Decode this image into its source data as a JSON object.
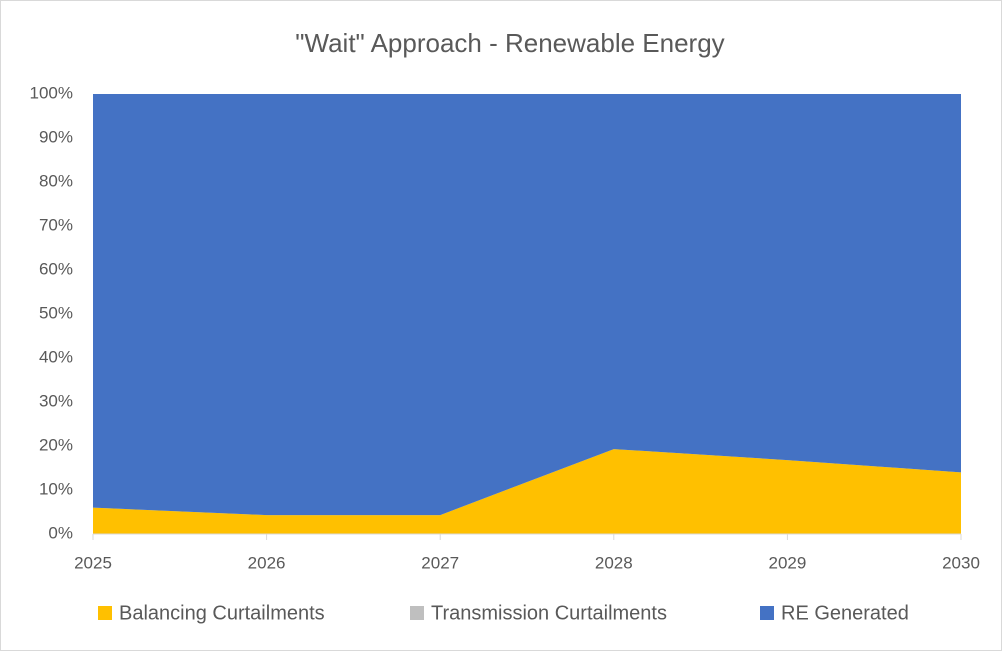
{
  "chart_data": {
    "type": "stacked_area",
    "title": "\"Wait\" Approach - Renewable Energy",
    "x": [
      2025,
      2026,
      2027,
      2028,
      2029,
      2030
    ],
    "series": [
      {
        "name": "Balancing Curtailments",
        "color": "#ffc000",
        "values": [
          6,
          4.3,
          4.3,
          19.3,
          16.8,
          14
        ]
      },
      {
        "name": "Transmission Curtailments",
        "color": "#bfbfbf",
        "values": [
          0,
          0,
          0,
          0,
          0,
          0
        ]
      },
      {
        "name": "RE Generated",
        "color": "#4472c4",
        "values": [
          94,
          95.7,
          95.7,
          80.7,
          83.2,
          86
        ]
      }
    ],
    "xlim": [
      2025,
      2030
    ],
    "xticks": [
      2025,
      2026,
      2027,
      2028,
      2029,
      2030
    ],
    "ylim": [
      0,
      100
    ],
    "yticks": [
      {
        "value": 0,
        "label": "0%"
      },
      {
        "value": 10,
        "label": "10%"
      },
      {
        "value": 20,
        "label": "20%"
      },
      {
        "value": 30,
        "label": "30%"
      },
      {
        "value": 40,
        "label": "40%"
      },
      {
        "value": 50,
        "label": "50%"
      },
      {
        "value": 60,
        "label": "60%"
      },
      {
        "value": 70,
        "label": "70%"
      },
      {
        "value": 80,
        "label": "80%"
      },
      {
        "value": 90,
        "label": "90%"
      },
      {
        "value": 100,
        "label": "100%"
      }
    ],
    "legend": "bottom"
  }
}
